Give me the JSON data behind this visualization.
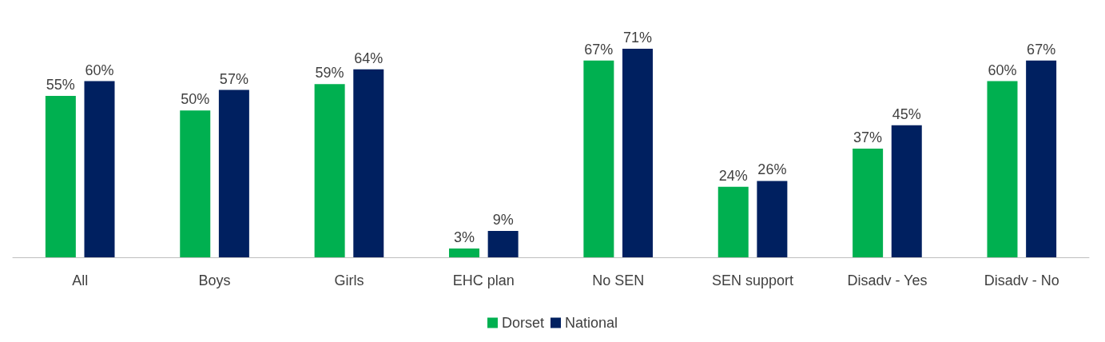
{
  "chart_data": {
    "type": "bar",
    "categories": [
      "All",
      "Boys",
      "Girls",
      "EHC plan",
      "No SEN",
      "SEN support",
      "Disadv - Yes",
      "Disadv - No"
    ],
    "series": [
      {
        "name": "Dorset",
        "color": "#00b050",
        "values": [
          55,
          50,
          59,
          3,
          67,
          24,
          37,
          60
        ],
        "value_labels": [
          "55%",
          "50%",
          "59%",
          "3%",
          "67%",
          "24%",
          "37%",
          "60%"
        ]
      },
      {
        "name": "National",
        "color": "#002060",
        "values": [
          60,
          57,
          64,
          9,
          71,
          26,
          45,
          67
        ],
        "value_labels": [
          "60%",
          "57%",
          "64%",
          "9%",
          "71%",
          "26%",
          "45%",
          "67%"
        ]
      }
    ],
    "legend": "bottom",
    "grid": false
  }
}
